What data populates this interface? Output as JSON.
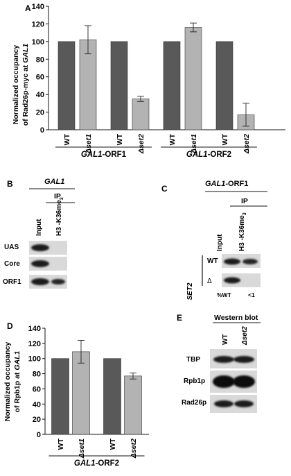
{
  "panels": {
    "A": "A",
    "B": "B",
    "C": "C",
    "D": "D",
    "E": "E"
  },
  "colors": {
    "wt_bar": "#595959",
    "mut_bar": "#b3b3b3",
    "band": "#1a1a1a"
  },
  "chart_data": [
    {
      "panel": "A",
      "type": "bar",
      "ylabel_line1": "Normalized occupancy",
      "ylabel_line2_prefix": "of Rad26p-myc at ",
      "ylabel_line2_gene": "GAL1",
      "ylim": [
        0,
        140
      ],
      "yticks": [
        "0",
        "20",
        "40",
        "60",
        "80",
        "100",
        "120",
        "140"
      ],
      "bars": [
        {
          "label": "WT",
          "italic": false,
          "value": 100,
          "err": 0,
          "kind": "wt"
        },
        {
          "label": "Δset1",
          "italic": true,
          "value": 102,
          "err": 16,
          "kind": "mut"
        },
        {
          "label": "WT",
          "italic": false,
          "value": 100,
          "err": 0,
          "kind": "wt"
        },
        {
          "label": "Δset2",
          "italic": true,
          "value": 35,
          "err": 3,
          "kind": "mut"
        },
        {
          "label": "WT",
          "italic": false,
          "value": 100,
          "err": 0,
          "kind": "wt"
        },
        {
          "label": "Δset1",
          "italic": true,
          "value": 116,
          "err": 5,
          "kind": "mut"
        },
        {
          "label": "WT",
          "italic": false,
          "value": 100,
          "err": 0,
          "kind": "wt"
        },
        {
          "label": "Δset2",
          "italic": true,
          "value": 17,
          "err": 13,
          "kind": "mut"
        }
      ],
      "groups": [
        {
          "gene": "GAL1",
          "suffix": "-ORF1"
        },
        {
          "gene": "GAL1",
          "suffix": "-ORF2"
        }
      ]
    },
    {
      "panel": "D",
      "type": "bar",
      "ylabel_line1": "Normalized occupancy",
      "ylabel_line2_prefix": "of Rpb1p at ",
      "ylabel_line2_gene": "GAL1",
      "ylim": [
        0,
        140
      ],
      "yticks": [
        "0",
        "20",
        "40",
        "60",
        "80",
        "100",
        "120",
        "140"
      ],
      "bars": [
        {
          "label": "WT",
          "italic": false,
          "value": 100,
          "err": 0,
          "kind": "wt"
        },
        {
          "label": "Δset1",
          "italic": true,
          "value": 109,
          "err": 15,
          "kind": "mut"
        },
        {
          "label": "WT",
          "italic": false,
          "value": 100,
          "err": 0,
          "kind": "wt"
        },
        {
          "label": "Δset2",
          "italic": true,
          "value": 77,
          "err": 4,
          "kind": "mut"
        }
      ],
      "groups": [
        {
          "gene": "GAL1",
          "suffix": "-ORF2"
        }
      ]
    }
  ],
  "panel_b": {
    "gene": "GAL1",
    "ip": "IP",
    "col_input": "Input",
    "col_h3": "H3 -K36me",
    "col_h3_sub": "3",
    "rows": [
      "UAS",
      "Core",
      "ORF1"
    ]
  },
  "panel_c": {
    "gene": "GAL1",
    "gene_suffix": "-ORF1",
    "ip": "IP",
    "col_input": "Input",
    "col_h3": "H3 -K36me",
    "col_h3_sub": "3",
    "group": "SET2",
    "row_wt": "WT",
    "row_del": "Δ",
    "pct_label": "%WT",
    "pct_value": "<1"
  },
  "panel_e": {
    "title": "Western blot",
    "col_wt": "WT",
    "col_mut": "Δset2",
    "rows": [
      "TBP",
      "Rpb1p",
      "Rad26p"
    ]
  }
}
